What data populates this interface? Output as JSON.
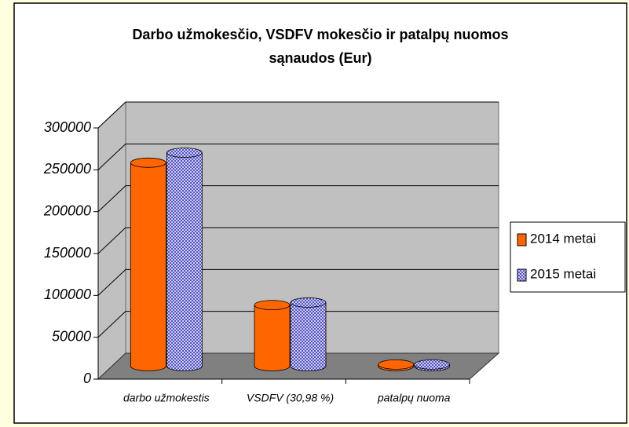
{
  "chart_data": {
    "type": "bar3d",
    "title": [
      "Darbo užmokesčio, VSDFV mokesčio ir patalpų nuomos",
      "sąnaudos (Eur)"
    ],
    "categories": [
      "darbo užmokestis",
      "VSDFV (30,98 %)",
      "patalpų nuoma"
    ],
    "series": [
      {
        "name": "2014 metai",
        "color": "#ff6600",
        "values": [
          243000,
          73000,
          2000
        ]
      },
      {
        "name": "2015 metai",
        "color": "#6666cc",
        "values": [
          255000,
          76000,
          2000
        ]
      }
    ],
    "ylim": [
      0,
      300000
    ],
    "yticks": [
      0,
      50000,
      100000,
      150000,
      200000,
      250000,
      300000
    ],
    "grid": true,
    "legend": "right"
  }
}
